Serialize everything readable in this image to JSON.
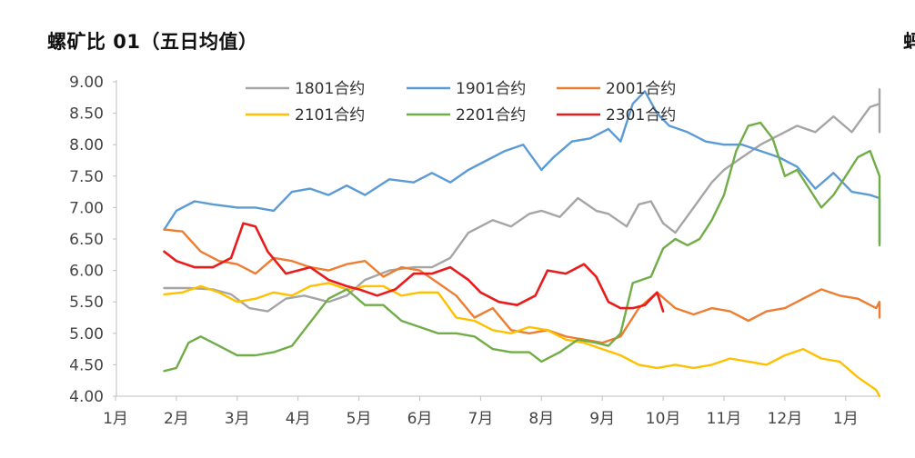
{
  "title": "螺矿比 01（五日均值）",
  "edge_glyph": "蚂",
  "chart_data": {
    "type": "line",
    "title": "螺矿比 01（五日均值）",
    "xlabel": "",
    "ylabel": "",
    "x_ticks": [
      "1月",
      "2月",
      "3月",
      "4月",
      "5月",
      "6月",
      "7月",
      "8月",
      "9月",
      "10月",
      "11月",
      "12月",
      "1月"
    ],
    "xlim": [
      0,
      13.5
    ],
    "ylim": [
      4.0,
      9.0
    ],
    "y_ticks": [
      "4.00",
      "4.50",
      "5.00",
      "5.50",
      "6.00",
      "6.50",
      "7.00",
      "7.50",
      "8.00",
      "8.50",
      "9.00"
    ],
    "legend_position": "top-center",
    "grid": false,
    "series": [
      {
        "name": "1801合约",
        "color": "#a5a5a5",
        "x": [
          0.8,
          1.2,
          1.6,
          1.9,
          2.2,
          2.5,
          2.8,
          3.1,
          3.5,
          3.8,
          4.1,
          4.5,
          4.9,
          5.2,
          5.5,
          5.8,
          6.0,
          6.2,
          6.5,
          6.8,
          7.0,
          7.3,
          7.6,
          7.9,
          8.1,
          8.4,
          8.6,
          8.8,
          9.0,
          9.2,
          9.5,
          9.8,
          10.0,
          10.3,
          10.6,
          10.9,
          11.2,
          11.5,
          11.8,
          12.1,
          12.4,
          12.6,
          12.9,
          13.2,
          13.5
        ],
        "y": [
          5.72,
          5.72,
          5.7,
          5.62,
          5.4,
          5.35,
          5.55,
          5.6,
          5.5,
          5.6,
          5.85,
          6.0,
          6.05,
          6.05,
          6.2,
          6.6,
          6.7,
          6.8,
          6.7,
          6.9,
          6.95,
          6.85,
          7.15,
          6.95,
          6.9,
          6.7,
          7.05,
          7.1,
          6.75,
          6.6,
          7.0,
          7.4,
          7.6,
          7.8,
          8.0,
          8.15,
          8.3,
          8.2,
          8.45,
          8.2,
          8.6,
          8.65,
          8.2,
          8.55,
          8.88
        ]
      },
      {
        "name": "1901合约",
        "color": "#5b9bd5",
        "x": [
          0.8,
          1.0,
          1.3,
          1.6,
          2.0,
          2.3,
          2.6,
          2.9,
          3.2,
          3.5,
          3.8,
          4.1,
          4.5,
          4.9,
          5.2,
          5.5,
          5.8,
          6.1,
          6.4,
          6.7,
          7.0,
          7.2,
          7.5,
          7.8,
          8.1,
          8.3,
          8.5,
          8.7,
          8.9,
          9.1,
          9.4,
          9.7,
          10.0,
          10.3,
          10.6,
          10.9,
          11.2,
          11.5,
          11.8,
          12.1,
          12.4,
          12.7,
          13.0,
          13.3,
          13.5
        ],
        "y": [
          6.65,
          6.95,
          7.1,
          7.05,
          7.0,
          7.0,
          6.95,
          7.25,
          7.3,
          7.2,
          7.35,
          7.2,
          7.45,
          7.4,
          7.55,
          7.4,
          7.6,
          7.75,
          7.9,
          8.0,
          7.6,
          7.8,
          8.05,
          8.1,
          8.25,
          8.05,
          8.65,
          8.85,
          8.5,
          8.3,
          8.2,
          8.05,
          8.0,
          8.0,
          7.9,
          7.8,
          7.65,
          7.3,
          7.55,
          7.25,
          7.2,
          7.15,
          7.1,
          7.1,
          6.45
        ]
      },
      {
        "name": "2001合约",
        "color": "#ed7d31",
        "x": [
          0.8,
          1.1,
          1.4,
          1.7,
          2.0,
          2.3,
          2.6,
          2.9,
          3.2,
          3.5,
          3.8,
          4.1,
          4.4,
          4.7,
          5.0,
          5.3,
          5.6,
          5.9,
          6.2,
          6.5,
          6.8,
          7.1,
          7.4,
          7.7,
          8.0,
          8.3,
          8.6,
          8.9,
          9.2,
          9.5,
          9.8,
          10.1,
          10.4,
          10.7,
          11.0,
          11.3,
          11.6,
          11.9,
          12.2,
          12.5,
          12.8,
          13.1,
          13.5
        ],
        "y": [
          6.65,
          6.62,
          6.3,
          6.15,
          6.1,
          5.95,
          6.2,
          6.15,
          6.05,
          6.0,
          6.1,
          6.15,
          5.9,
          6.05,
          6.0,
          5.8,
          5.6,
          5.25,
          5.4,
          5.05,
          5.0,
          5.05,
          4.95,
          4.9,
          4.85,
          4.95,
          5.4,
          5.65,
          5.4,
          5.3,
          5.4,
          5.35,
          5.2,
          5.35,
          5.4,
          5.55,
          5.7,
          5.6,
          5.55,
          5.4,
          5.5,
          5.4,
          5.25
        ]
      },
      {
        "name": "2101合约",
        "color": "#ffc000",
        "x": [
          0.8,
          1.1,
          1.4,
          1.7,
          2.0,
          2.3,
          2.6,
          2.9,
          3.2,
          3.5,
          3.8,
          4.1,
          4.4,
          4.7,
          5.0,
          5.3,
          5.6,
          5.9,
          6.2,
          6.5,
          6.8,
          7.1,
          7.4,
          7.7,
          8.0,
          8.3,
          8.6,
          8.9,
          9.2,
          9.5,
          9.8,
          10.1,
          10.4,
          10.7,
          11.0,
          11.3,
          11.6,
          11.9,
          12.2,
          12.5,
          12.8
        ],
        "y": [
          5.62,
          5.65,
          5.75,
          5.65,
          5.5,
          5.55,
          5.65,
          5.6,
          5.75,
          5.8,
          5.7,
          5.75,
          5.75,
          5.6,
          5.65,
          5.65,
          5.25,
          5.2,
          5.05,
          5.0,
          5.1,
          5.05,
          4.9,
          4.85,
          4.75,
          4.65,
          4.5,
          4.45,
          4.5,
          4.45,
          4.5,
          4.6,
          4.55,
          4.5,
          4.65,
          4.75,
          4.6,
          4.55,
          4.3,
          4.1,
          4.0
        ]
      },
      {
        "name": "2201合约",
        "color": "#70ad47",
        "x": [
          0.8,
          1.0,
          1.2,
          1.4,
          1.7,
          2.0,
          2.3,
          2.6,
          2.9,
          3.1,
          3.3,
          3.5,
          3.8,
          4.1,
          4.4,
          4.7,
          5.0,
          5.3,
          5.6,
          5.9,
          6.2,
          6.5,
          6.8,
          7.0,
          7.3,
          7.6,
          7.9,
          8.1,
          8.3,
          8.5,
          8.8,
          9.0,
          9.2,
          9.4,
          9.6,
          9.8,
          10.0,
          10.2,
          10.4,
          10.6,
          10.8,
          11.0,
          11.2,
          11.4,
          11.6,
          11.8,
          12.0,
          12.2,
          12.4,
          12.6,
          12.8,
          13.0,
          13.2,
          13.5
        ],
        "y": [
          4.4,
          4.45,
          4.85,
          4.95,
          4.8,
          4.65,
          4.65,
          4.7,
          4.8,
          5.05,
          5.3,
          5.55,
          5.7,
          5.45,
          5.45,
          5.2,
          5.1,
          5.0,
          5.0,
          4.95,
          4.75,
          4.7,
          4.7,
          4.55,
          4.7,
          4.9,
          4.85,
          4.8,
          5.0,
          5.8,
          5.9,
          6.35,
          6.5,
          6.4,
          6.5,
          6.8,
          7.2,
          7.9,
          8.3,
          8.35,
          8.1,
          7.5,
          7.6,
          7.3,
          7.0,
          7.2,
          7.5,
          7.8,
          7.9,
          7.5,
          7.25,
          6.9,
          6.8,
          6.4
        ]
      },
      {
        "name": "2301合约",
        "color": "#e81c1c",
        "x": [
          0.8,
          1.0,
          1.3,
          1.6,
          1.9,
          2.1,
          2.3,
          2.5,
          2.8,
          3.0,
          3.2,
          3.5,
          3.8,
          4.0,
          4.3,
          4.6,
          4.9,
          5.2,
          5.5,
          5.8,
          6.0,
          6.3,
          6.6,
          6.9,
          7.1,
          7.4,
          7.7,
          7.9,
          8.1,
          8.3,
          8.5,
          8.7,
          8.9,
          9.0
        ],
        "y": [
          6.3,
          6.15,
          6.05,
          6.05,
          6.2,
          6.75,
          6.7,
          6.3,
          5.95,
          6.0,
          6.05,
          5.85,
          5.75,
          5.7,
          5.6,
          5.7,
          5.95,
          5.95,
          6.05,
          5.85,
          5.65,
          5.5,
          5.45,
          5.6,
          6.0,
          5.95,
          6.1,
          5.9,
          5.5,
          5.4,
          5.4,
          5.45,
          5.65,
          5.35
        ]
      }
    ]
  }
}
